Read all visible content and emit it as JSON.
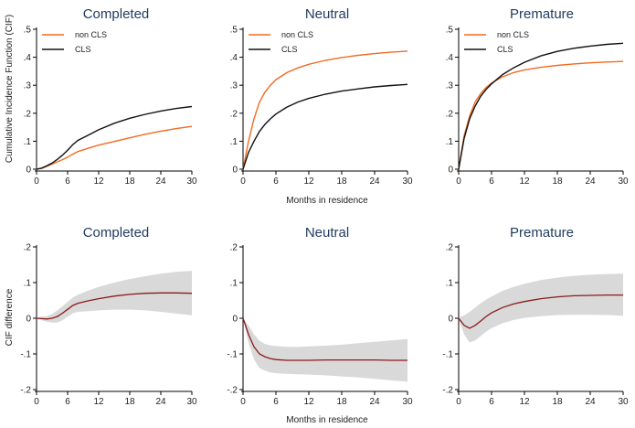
{
  "figure": {
    "top_xlabel": "Months in residence",
    "bottom_xlabel": "Months in residence",
    "top_ylabel": "Cumulative Incidence Function (CIF)",
    "bottom_ylabel": "CIF difference"
  },
  "chart_data": [
    {
      "type": "line",
      "title": "Completed",
      "xlabel": "",
      "ylabel": "Cumulative Incidence Function (CIF)",
      "xlim": [
        0,
        30
      ],
      "ylim": [
        0,
        0.5
      ],
      "xticks": [
        0,
        6,
        12,
        18,
        24,
        30
      ],
      "yticks": [
        0,
        0.1,
        0.2,
        0.3,
        0.4,
        0.5
      ],
      "ytick_labels": [
        "0",
        ".1",
        ".2",
        ".3",
        ".4",
        ".5"
      ],
      "x": [
        0,
        1,
        2,
        3,
        4,
        5,
        6,
        7,
        8,
        10,
        12,
        15,
        18,
        21,
        24,
        27,
        30
      ],
      "legend": [
        "non CLS",
        "CLS"
      ],
      "series": [
        {
          "name": "non CLS",
          "color": "#f26b21",
          "values": [
            0,
            0.003,
            0.01,
            0.018,
            0.026,
            0.034,
            0.043,
            0.054,
            0.063,
            0.075,
            0.086,
            0.099,
            0.112,
            0.125,
            0.136,
            0.145,
            0.153
          ]
        },
        {
          "name": "CLS",
          "color": "#111111",
          "values": [
            0,
            0.004,
            0.012,
            0.022,
            0.035,
            0.05,
            0.068,
            0.088,
            0.103,
            0.122,
            0.141,
            0.164,
            0.182,
            0.196,
            0.208,
            0.217,
            0.224
          ]
        }
      ]
    },
    {
      "type": "line",
      "title": "Neutral",
      "xlabel": "Months in residence",
      "ylabel": "",
      "xlim": [
        0,
        30
      ],
      "ylim": [
        0,
        0.5
      ],
      "xticks": [
        0,
        6,
        12,
        18,
        24,
        30
      ],
      "yticks": [
        0,
        0.1,
        0.2,
        0.3,
        0.4,
        0.5
      ],
      "ytick_labels": [
        "0",
        ".1",
        ".2",
        ".3",
        ".4",
        ".5"
      ],
      "x": [
        0,
        1,
        2,
        3,
        4,
        5,
        6,
        8,
        10,
        12,
        15,
        18,
        21,
        24,
        27,
        30
      ],
      "legend": [
        "non CLS",
        "CLS"
      ],
      "series": [
        {
          "name": "non CLS",
          "color": "#f26b21",
          "values": [
            0,
            0.1,
            0.18,
            0.24,
            0.275,
            0.3,
            0.32,
            0.345,
            0.362,
            0.375,
            0.389,
            0.399,
            0.407,
            0.413,
            0.418,
            0.422
          ]
        },
        {
          "name": "CLS",
          "color": "#111111",
          "values": [
            0,
            0.06,
            0.1,
            0.135,
            0.16,
            0.18,
            0.197,
            0.222,
            0.24,
            0.253,
            0.268,
            0.279,
            0.287,
            0.294,
            0.299,
            0.303
          ]
        }
      ]
    },
    {
      "type": "line",
      "title": "Premature",
      "xlabel": "",
      "ylabel": "",
      "xlim": [
        0,
        30
      ],
      "ylim": [
        0,
        0.5
      ],
      "xticks": [
        0,
        6,
        12,
        18,
        24,
        30
      ],
      "yticks": [
        0,
        0.1,
        0.2,
        0.3,
        0.4,
        0.5
      ],
      "ytick_labels": [
        "0",
        ".1",
        ".2",
        ".3",
        ".4",
        ".5"
      ],
      "x": [
        0,
        1,
        2,
        3,
        4,
        5,
        6,
        8,
        10,
        12,
        15,
        18,
        21,
        24,
        27,
        30
      ],
      "legend": [
        "non CLS",
        "CLS"
      ],
      "series": [
        {
          "name": "non CLS",
          "color": "#f26b21",
          "values": [
            0,
            0.12,
            0.19,
            0.24,
            0.27,
            0.292,
            0.308,
            0.33,
            0.345,
            0.355,
            0.364,
            0.371,
            0.376,
            0.38,
            0.383,
            0.385
          ]
        },
        {
          "name": "CLS",
          "color": "#111111",
          "values": [
            0,
            0.11,
            0.18,
            0.225,
            0.26,
            0.285,
            0.305,
            0.338,
            0.362,
            0.382,
            0.405,
            0.421,
            0.432,
            0.44,
            0.446,
            0.45
          ]
        }
      ]
    },
    {
      "type": "area",
      "title": "Completed",
      "xlabel": "",
      "ylabel": "CIF difference",
      "xlim": [
        0,
        30
      ],
      "ylim": [
        -0.2,
        0.2
      ],
      "xticks": [
        0,
        6,
        12,
        18,
        24,
        30
      ],
      "yticks": [
        -0.2,
        -0.1,
        0,
        0.1,
        0.2
      ],
      "ytick_labels": [
        "-.2",
        "-.1",
        "0",
        ".1",
        ".2"
      ],
      "x": [
        0,
        1,
        2,
        3,
        4,
        5,
        6,
        7,
        8,
        10,
        12,
        15,
        18,
        21,
        24,
        27,
        30
      ],
      "series": [
        {
          "name": "CIF difference",
          "color": "#8b1a1a",
          "values": [
            0,
            -0.001,
            -0.002,
            0,
            0.005,
            0.014,
            0.025,
            0.036,
            0.042,
            0.049,
            0.055,
            0.062,
            0.067,
            0.07,
            0.071,
            0.071,
            0.07
          ]
        },
        {
          "name": "upper",
          "color": "#d9d9d9",
          "values": [
            0.002,
            0.004,
            0.006,
            0.012,
            0.022,
            0.034,
            0.046,
            0.058,
            0.066,
            0.078,
            0.088,
            0.1,
            0.11,
            0.118,
            0.125,
            0.13,
            0.133
          ]
        },
        {
          "name": "lower",
          "color": "#d9d9d9",
          "values": [
            -0.002,
            -0.006,
            -0.01,
            -0.012,
            -0.012,
            -0.006,
            0.004,
            0.014,
            0.018,
            0.02,
            0.022,
            0.024,
            0.024,
            0.022,
            0.018,
            0.013,
            0.008
          ]
        }
      ]
    },
    {
      "type": "area",
      "title": "Neutral",
      "xlabel": "Months in residence",
      "ylabel": "",
      "xlim": [
        0,
        30
      ],
      "ylim": [
        -0.2,
        0.2
      ],
      "xticks": [
        0,
        6,
        12,
        18,
        24,
        30
      ],
      "yticks": [
        -0.2,
        -0.1,
        0,
        0.1,
        0.2
      ],
      "ytick_labels": [
        "-.2",
        "-.1",
        "0",
        ".1",
        ".2"
      ],
      "x": [
        0,
        1,
        2,
        3,
        4,
        5,
        6,
        8,
        10,
        12,
        15,
        18,
        21,
        24,
        27,
        30
      ],
      "series": [
        {
          "name": "CIF difference",
          "color": "#8b1a1a",
          "values": [
            0,
            -0.045,
            -0.08,
            -0.1,
            -0.108,
            -0.113,
            -0.116,
            -0.118,
            -0.118,
            -0.118,
            -0.117,
            -0.117,
            -0.117,
            -0.117,
            -0.118,
            -0.118
          ]
        },
        {
          "name": "upper",
          "color": "#d9d9d9",
          "values": [
            0,
            -0.02,
            -0.045,
            -0.063,
            -0.072,
            -0.076,
            -0.078,
            -0.08,
            -0.08,
            -0.079,
            -0.077,
            -0.074,
            -0.07,
            -0.066,
            -0.062,
            -0.058
          ]
        },
        {
          "name": "lower",
          "color": "#d9d9d9",
          "values": [
            0,
            -0.07,
            -0.115,
            -0.14,
            -0.147,
            -0.152,
            -0.154,
            -0.156,
            -0.157,
            -0.158,
            -0.16,
            -0.163,
            -0.166,
            -0.17,
            -0.174,
            -0.178
          ]
        }
      ]
    },
    {
      "type": "area",
      "title": "Premature",
      "xlabel": "",
      "ylabel": "",
      "xlim": [
        0,
        30
      ],
      "ylim": [
        -0.2,
        0.2
      ],
      "xticks": [
        0,
        6,
        12,
        18,
        24,
        30
      ],
      "yticks": [
        -0.2,
        -0.1,
        0,
        0.1,
        0.2
      ],
      "ytick_labels": [
        "-.2",
        "-.1",
        "0",
        ".1",
        ".2"
      ],
      "x": [
        0,
        1,
        2,
        3,
        4,
        5,
        6,
        8,
        10,
        12,
        15,
        18,
        21,
        24,
        27,
        30
      ],
      "series": [
        {
          "name": "CIF difference",
          "color": "#8b1a1a",
          "values": [
            0,
            -0.02,
            -0.028,
            -0.02,
            -0.008,
            0.005,
            0.015,
            0.03,
            0.04,
            0.047,
            0.055,
            0.06,
            0.063,
            0.064,
            0.065,
            0.065
          ]
        },
        {
          "name": "upper",
          "color": "#d9d9d9",
          "values": [
            0.002,
            0.008,
            0.018,
            0.03,
            0.042,
            0.052,
            0.061,
            0.077,
            0.088,
            0.097,
            0.107,
            0.114,
            0.119,
            0.122,
            0.124,
            0.125
          ]
        },
        {
          "name": "lower",
          "color": "#d9d9d9",
          "values": [
            -0.002,
            -0.045,
            -0.068,
            -0.062,
            -0.05,
            -0.038,
            -0.028,
            -0.014,
            -0.005,
            0.001,
            0.006,
            0.009,
            0.01,
            0.01,
            0.009,
            0.007
          ]
        }
      ]
    }
  ]
}
